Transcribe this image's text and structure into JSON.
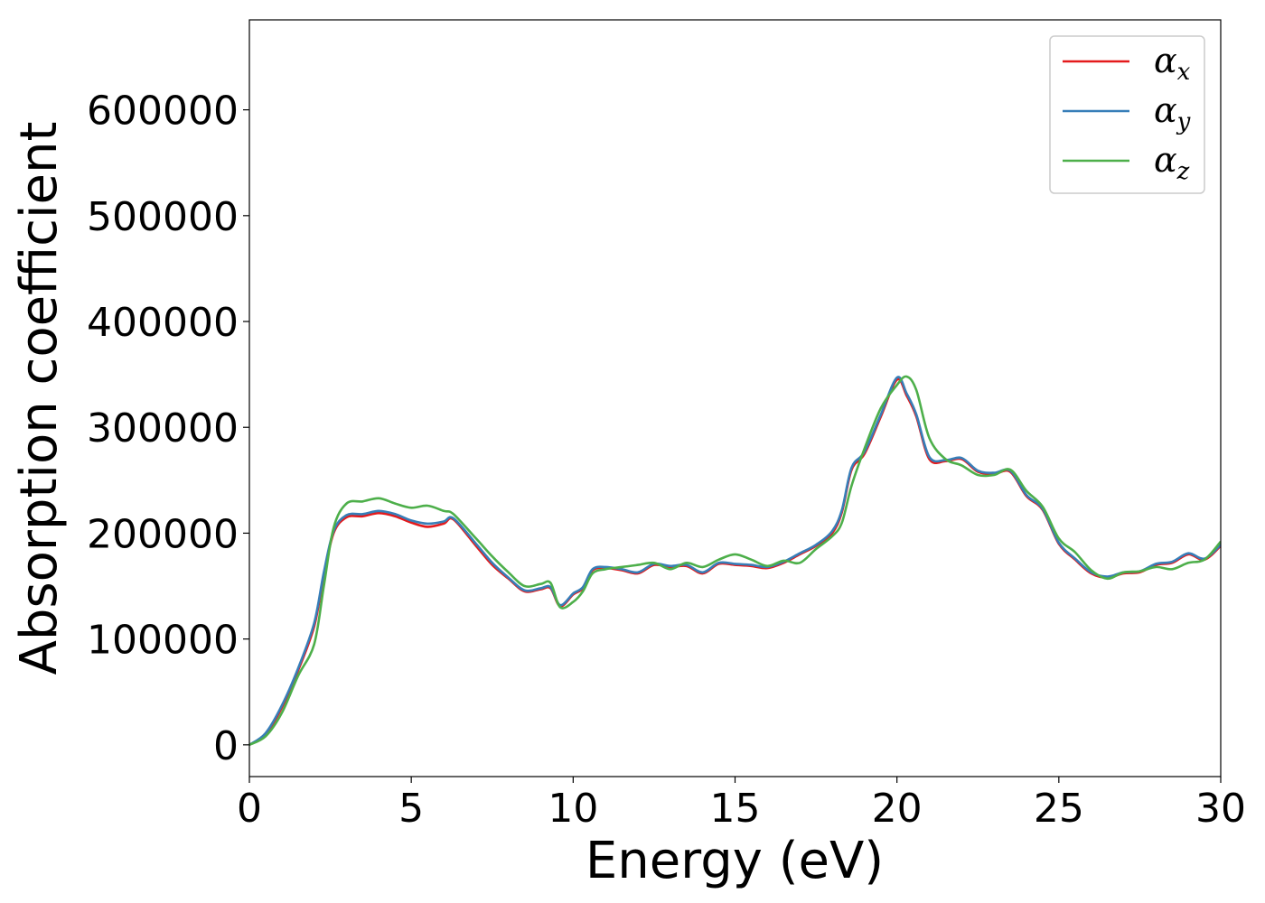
{
  "chart_data": {
    "type": "line",
    "xlabel": "Energy (eV)",
    "ylabel": "Absorption coefficient",
    "xlim": [
      0,
      30
    ],
    "ylim": [
      -30000,
      685000
    ],
    "xticks": [
      0,
      5,
      10,
      15,
      20,
      25,
      30
    ],
    "yticks": [
      0,
      100000,
      200000,
      300000,
      400000,
      500000,
      600000
    ],
    "grid": false,
    "legend_position": "top-right",
    "series": [
      {
        "name": "α",
        "name_sub": "x",
        "color": "#e41a1c",
        "x": [
          0,
          0.5,
          1,
          1.5,
          2,
          2.3,
          2.6,
          3,
          3.5,
          4,
          4.5,
          5,
          5.5,
          6,
          6.3,
          7,
          7.5,
          8,
          8.5,
          9,
          9.3,
          9.6,
          10,
          10.3,
          10.6,
          11,
          11.5,
          12,
          12.5,
          13,
          13.5,
          14,
          14.5,
          15,
          15.5,
          16,
          16.5,
          17,
          17.5,
          18,
          18.3,
          18.6,
          19,
          19.5,
          20,
          20.3,
          20.6,
          21,
          21.5,
          22,
          22.5,
          23,
          23.5,
          24,
          24.5,
          25,
          25.5,
          26,
          26.5,
          27,
          27.5,
          28,
          28.5,
          29,
          29.5,
          30
        ],
        "values": [
          0,
          10000,
          35000,
          70000,
          112000,
          160000,
          200000,
          215000,
          216000,
          219000,
          216000,
          210000,
          206000,
          209000,
          213000,
          188000,
          170000,
          157000,
          145000,
          147000,
          148000,
          131000,
          142000,
          148000,
          165000,
          167000,
          165000,
          162000,
          170000,
          168000,
          169000,
          162000,
          171000,
          170000,
          169000,
          167000,
          172000,
          180000,
          188000,
          200000,
          220000,
          260000,
          275000,
          310000,
          345000,
          330000,
          310000,
          270000,
          268000,
          270000,
          258000,
          256000,
          258000,
          235000,
          222000,
          190000,
          175000,
          162000,
          158000,
          162000,
          163000,
          170000,
          172000,
          180000,
          175000,
          188000
        ]
      },
      {
        "name": "α",
        "name_sub": "y",
        "color": "#377eb8",
        "x": [
          0,
          0.5,
          1,
          1.5,
          2,
          2.3,
          2.6,
          3,
          3.5,
          4,
          4.5,
          5,
          5.5,
          6,
          6.3,
          7,
          7.5,
          8,
          8.5,
          9,
          9.3,
          9.6,
          10,
          10.3,
          10.6,
          11,
          11.5,
          12,
          12.5,
          13,
          13.5,
          14,
          14.5,
          15,
          15.5,
          16,
          16.5,
          17,
          17.5,
          18,
          18.3,
          18.6,
          19,
          19.5,
          20,
          20.3,
          20.6,
          21,
          21.5,
          22,
          22.5,
          23,
          23.5,
          24,
          24.5,
          25,
          25.5,
          26,
          26.5,
          27,
          27.5,
          28,
          28.5,
          29,
          29.5,
          30
        ],
        "values": [
          0,
          11000,
          37000,
          72000,
          115000,
          163000,
          202000,
          217000,
          218000,
          221000,
          218000,
          212000,
          209000,
          211000,
          214000,
          190000,
          172000,
          158000,
          146000,
          148000,
          149000,
          132000,
          143000,
          149000,
          166000,
          168000,
          166000,
          163000,
          171000,
          169000,
          170000,
          163000,
          172000,
          171000,
          170000,
          168000,
          173000,
          181000,
          189000,
          202000,
          222000,
          262000,
          277000,
          312000,
          347000,
          332000,
          312000,
          272000,
          269000,
          271000,
          259000,
          257000,
          259000,
          236000,
          223000,
          191000,
          176000,
          163000,
          159000,
          163000,
          164000,
          171000,
          173000,
          181000,
          176000,
          189000
        ]
      },
      {
        "name": "α",
        "name_sub": "z",
        "color": "#4daf4a",
        "x": [
          0,
          0.5,
          1,
          1.5,
          2,
          2.3,
          2.6,
          3,
          3.5,
          4,
          4.5,
          5,
          5.5,
          6,
          6.3,
          7,
          7.5,
          8,
          8.5,
          9,
          9.3,
          9.6,
          10,
          10.3,
          10.6,
          11,
          11.5,
          12,
          12.5,
          13,
          13.5,
          14,
          14.5,
          15,
          15.5,
          16,
          16.5,
          17,
          17.5,
          18,
          18.3,
          18.6,
          19,
          19.5,
          20,
          20.3,
          20.6,
          21,
          21.5,
          22,
          22.5,
          23,
          23.5,
          24,
          24.5,
          25,
          25.5,
          26,
          26.5,
          27,
          27.5,
          28,
          28.5,
          29,
          29.5,
          30
        ],
        "values": [
          0,
          8000,
          30000,
          65000,
          95000,
          150000,
          205000,
          228000,
          230000,
          233000,
          228000,
          224000,
          226000,
          221000,
          218000,
          195000,
          178000,
          163000,
          150000,
          152000,
          153000,
          130000,
          135000,
          145000,
          162000,
          166000,
          168000,
          170000,
          172000,
          166000,
          172000,
          168000,
          175000,
          180000,
          175000,
          169000,
          174000,
          172000,
          185000,
          197000,
          210000,
          245000,
          280000,
          318000,
          340000,
          348000,
          335000,
          290000,
          270000,
          264000,
          255000,
          255000,
          260000,
          240000,
          225000,
          195000,
          182000,
          165000,
          157000,
          163000,
          164000,
          168000,
          166000,
          172000,
          175000,
          192000
        ]
      }
    ]
  }
}
